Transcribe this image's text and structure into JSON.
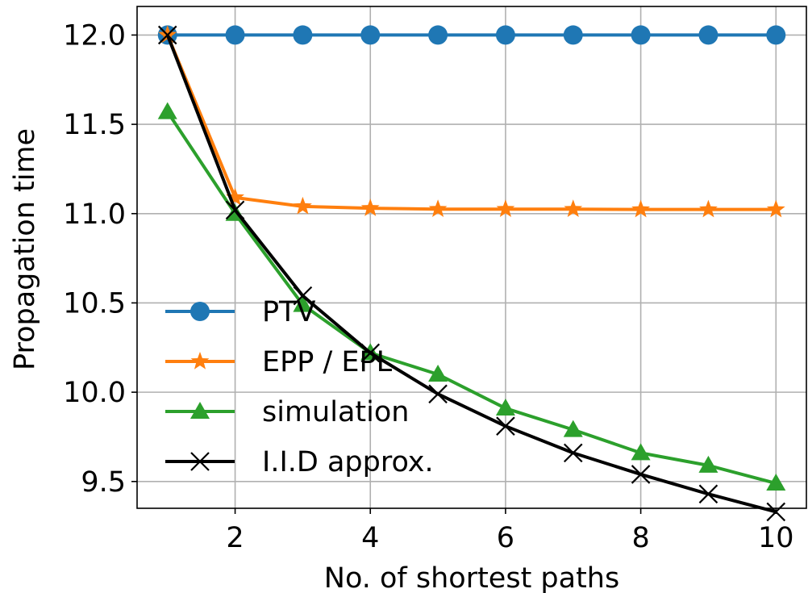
{
  "chart_data": {
    "type": "line",
    "title": "",
    "xlabel": "No. of shortest paths",
    "ylabel": "Propagation time",
    "x": [
      1,
      2,
      3,
      4,
      5,
      6,
      7,
      8,
      9,
      10
    ],
    "xlim": [
      0.55,
      10.45
    ],
    "ylim": [
      9.35,
      12.16
    ],
    "xticks": [
      2,
      4,
      6,
      8,
      10
    ],
    "xtick_labels": [
      "2",
      "4",
      "6",
      "8",
      "10"
    ],
    "yticks": [
      9.5,
      10.0,
      10.5,
      11.0,
      11.5,
      12.0
    ],
    "ytick_labels": [
      "9.5",
      "10.0",
      "10.5",
      "11.0",
      "11.5",
      "12.0"
    ],
    "grid": true,
    "legend_position": "lower-left",
    "series": [
      {
        "name": "PTV",
        "color": "#1f77b4",
        "marker": "circle",
        "values": [
          12.0,
          12.0,
          12.0,
          12.0,
          12.0,
          12.0,
          12.0,
          12.0,
          12.0,
          12.0
        ]
      },
      {
        "name": "EPP / EPL",
        "color": "#ff7f0e",
        "marker": "star",
        "values": [
          12.0,
          11.09,
          11.04,
          11.03,
          11.025,
          11.025,
          11.025,
          11.023,
          11.023,
          11.023
        ]
      },
      {
        "name": "simulation",
        "color": "#2ca02c",
        "marker": "triangle",
        "values": [
          11.57,
          11.0,
          10.49,
          10.22,
          10.1,
          9.91,
          9.79,
          9.66,
          9.59,
          9.49
        ]
      },
      {
        "name": "I.I.D approx.",
        "color": "#000000",
        "marker": "x",
        "values": [
          12.0,
          11.02,
          10.54,
          10.22,
          9.99,
          9.81,
          9.66,
          9.54,
          9.43,
          9.33
        ]
      }
    ]
  }
}
